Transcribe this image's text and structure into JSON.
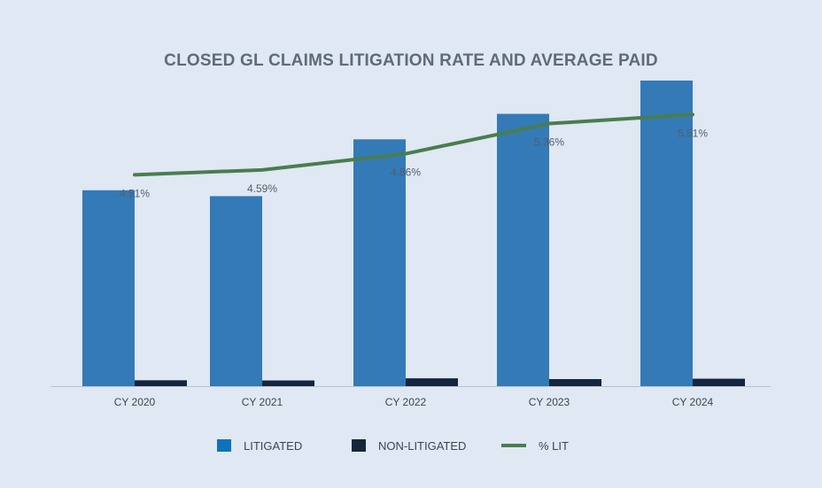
{
  "chart_data": {
    "type": "bar",
    "title": "CLOSED GL CLAIMS LITIGATION RATE AND AVERAGE PAID",
    "categories": [
      "CY 2020",
      "CY 2021",
      "CY 2022",
      "CY 2023",
      "CY 2024"
    ],
    "series": [
      {
        "name": "LITIGATED",
        "type": "bar",
        "color": "#337ab7",
        "values": [
          100,
          97,
          126,
          139,
          156
        ]
      },
      {
        "name": "NON-LITIGATED",
        "type": "bar",
        "color": "#13263d",
        "values": [
          3.0,
          2.9,
          4.0,
          3.6,
          3.8
        ]
      },
      {
        "name": "% LIT",
        "type": "line",
        "color": "#4a7d4e",
        "values": [
          4.51,
          4.59,
          4.86,
          5.36,
          5.51
        ]
      }
    ],
    "data_labels": [
      "4.51%",
      "4.59%",
      "4.86%",
      "5.36%",
      "5.51%"
    ],
    "bar_axis_max": 170,
    "line_axis_range": [
      3.0,
      5.5
    ],
    "legend_position": "bottom",
    "grid": false
  }
}
